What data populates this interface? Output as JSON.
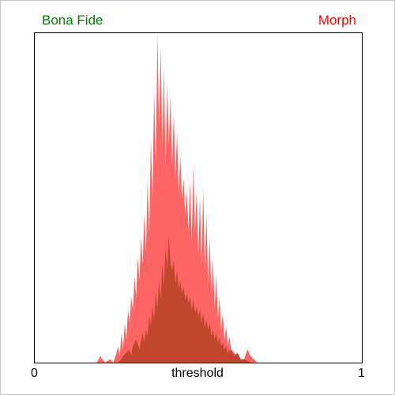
{
  "chart_data": {
    "type": "area",
    "xlabel": "threshold",
    "x_ticks": [
      "0",
      "1"
    ],
    "xlim": [
      0,
      1
    ],
    "ylim": [
      0,
      1
    ],
    "legend": "top (left and right)",
    "grid": false,
    "series": [
      {
        "name": "Bona Fide",
        "color": "#008000",
        "fill": "#c0462c",
        "x": [
          0.195,
          0.235,
          0.255,
          0.265,
          0.27,
          0.28,
          0.29,
          0.295,
          0.3,
          0.31,
          0.32,
          0.33,
          0.335,
          0.34,
          0.345,
          0.35,
          0.355,
          0.36,
          0.365,
          0.37,
          0.375,
          0.38,
          0.385,
          0.39,
          0.395,
          0.4,
          0.405,
          0.41,
          0.415,
          0.42,
          0.425,
          0.43,
          0.435,
          0.44,
          0.445,
          0.45,
          0.455,
          0.46,
          0.465,
          0.47,
          0.475,
          0.48,
          0.485,
          0.49,
          0.495,
          0.5,
          0.505,
          0.51,
          0.515,
          0.52,
          0.525,
          0.53,
          0.535,
          0.54,
          0.545,
          0.55,
          0.555,
          0.56,
          0.565,
          0.57,
          0.575,
          0.58,
          0.585,
          0.59,
          0.6,
          0.61,
          0.62,
          0.63,
          0.64,
          0.66,
          0.68,
          0.69
        ],
        "values": [
          0.0,
          0.0,
          0.0,
          0.01,
          0.02,
          0.03,
          0.04,
          0.02,
          0.05,
          0.07,
          0.04,
          0.09,
          0.06,
          0.1,
          0.08,
          0.14,
          0.11,
          0.17,
          0.13,
          0.21,
          0.16,
          0.25,
          0.19,
          0.3,
          0.23,
          0.35,
          0.28,
          0.39,
          0.3,
          0.28,
          0.31,
          0.24,
          0.28,
          0.22,
          0.25,
          0.21,
          0.23,
          0.19,
          0.21,
          0.18,
          0.2,
          0.16,
          0.19,
          0.15,
          0.17,
          0.14,
          0.16,
          0.12,
          0.15,
          0.11,
          0.13,
          0.1,
          0.12,
          0.08,
          0.1,
          0.07,
          0.09,
          0.06,
          0.08,
          0.05,
          0.06,
          0.04,
          0.05,
          0.03,
          0.04,
          0.02,
          0.03,
          0.01,
          0.01,
          0.0,
          0.0,
          0.0
        ]
      },
      {
        "name": "Morph",
        "color": "#ff0000",
        "fill": "#ff6464",
        "x": [
          0.19,
          0.2,
          0.215,
          0.23,
          0.24,
          0.25,
          0.255,
          0.26,
          0.265,
          0.27,
          0.275,
          0.28,
          0.285,
          0.29,
          0.295,
          0.3,
          0.305,
          0.31,
          0.315,
          0.32,
          0.325,
          0.33,
          0.335,
          0.34,
          0.345,
          0.35,
          0.355,
          0.36,
          0.365,
          0.37,
          0.375,
          0.38,
          0.385,
          0.39,
          0.395,
          0.4,
          0.405,
          0.41,
          0.415,
          0.42,
          0.425,
          0.43,
          0.435,
          0.44,
          0.445,
          0.45,
          0.455,
          0.46,
          0.465,
          0.47,
          0.475,
          0.48,
          0.485,
          0.49,
          0.495,
          0.5,
          0.505,
          0.51,
          0.515,
          0.52,
          0.525,
          0.53,
          0.535,
          0.54,
          0.545,
          0.55,
          0.555,
          0.56,
          0.565,
          0.57,
          0.575,
          0.58,
          0.585,
          0.59,
          0.595,
          0.6,
          0.61,
          0.62,
          0.63,
          0.64,
          0.65,
          0.66,
          0.67,
          0.68,
          0.69
        ],
        "values": [
          0.0,
          0.02,
          0.0,
          0.01,
          0.0,
          0.03,
          0.05,
          0.02,
          0.09,
          0.04,
          0.12,
          0.07,
          0.16,
          0.12,
          0.2,
          0.16,
          0.26,
          0.2,
          0.32,
          0.25,
          0.38,
          0.3,
          0.45,
          0.34,
          0.55,
          0.39,
          0.68,
          0.5,
          0.82,
          0.6,
          1.0,
          0.72,
          0.96,
          0.65,
          0.9,
          0.6,
          0.85,
          0.66,
          0.81,
          0.6,
          0.76,
          0.56,
          0.7,
          0.52,
          0.63,
          0.5,
          0.56,
          0.45,
          0.52,
          0.4,
          0.55,
          0.37,
          0.6,
          0.4,
          0.52,
          0.33,
          0.5,
          0.3,
          0.53,
          0.28,
          0.45,
          0.24,
          0.38,
          0.2,
          0.32,
          0.16,
          0.27,
          0.13,
          0.2,
          0.1,
          0.15,
          0.07,
          0.11,
          0.05,
          0.08,
          0.04,
          0.03,
          0.02,
          0.01,
          0.01,
          0.04,
          0.02,
          0.01,
          0.0,
          0.0
        ]
      }
    ]
  }
}
